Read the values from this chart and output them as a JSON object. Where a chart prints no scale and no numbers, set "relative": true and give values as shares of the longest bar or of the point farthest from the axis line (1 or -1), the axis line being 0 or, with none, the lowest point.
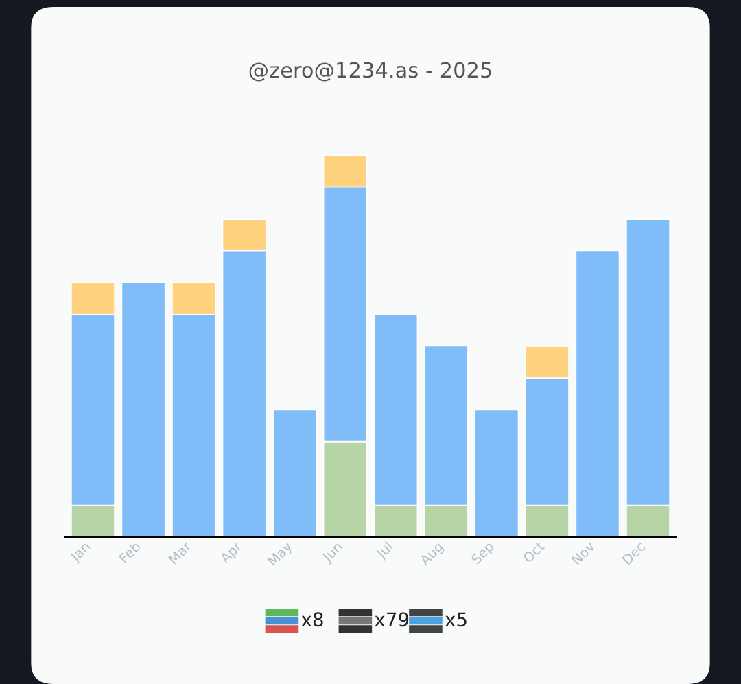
{
  "chart_data": {
    "type": "bar",
    "title": "@zero@1234.as - 2025",
    "relative": true,
    "stacked": true,
    "legend": false,
    "grid": false,
    "categories": [
      "Jan",
      "Feb",
      "Mar",
      "Apr",
      "May",
      "Jun",
      "Jul",
      "Aug",
      "Sep",
      "Oct",
      "Nov",
      "Dec"
    ],
    "series": [
      {
        "color": "#b7d4a6",
        "values": [
          0.083,
          null,
          null,
          null,
          null,
          0.25,
          0.083,
          0.083,
          null,
          0.083,
          null,
          0.083
        ]
      },
      {
        "color": "#7fbcf8",
        "values": [
          0.5,
          0.667,
          0.583,
          0.75,
          0.333,
          0.667,
          0.5,
          0.417,
          0.333,
          0.333,
          0.75,
          0.75
        ]
      },
      {
        "color": "#fed27e",
        "values": [
          0.083,
          null,
          0.083,
          0.083,
          null,
          0.083,
          null,
          null,
          null,
          0.083,
          null,
          null
        ]
      }
    ],
    "annotations": [
      "x8",
      "x79",
      "x5"
    ]
  }
}
